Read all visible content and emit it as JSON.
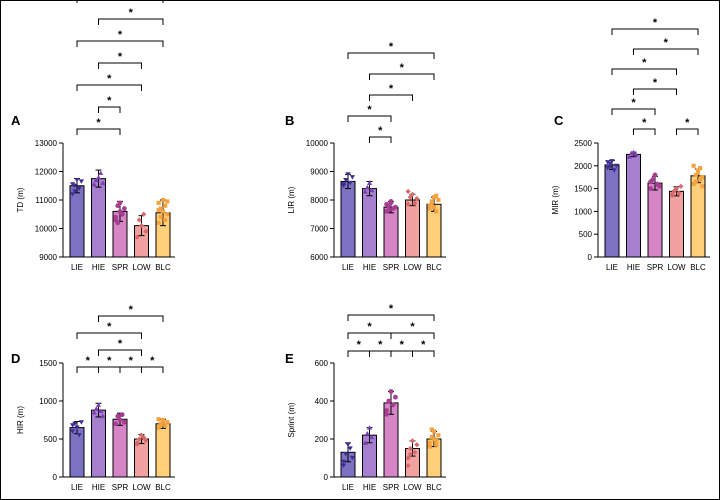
{
  "chart_data": [
    {
      "panel": "A",
      "type": "bar",
      "ylabel": "TD (m)",
      "ylim": [
        9000,
        13000
      ],
      "yticks": [
        9000,
        10000,
        11000,
        12000,
        13000
      ],
      "categories": [
        "LIE",
        "HIE",
        "SPR",
        "LOW",
        "BLC"
      ],
      "values": [
        11500,
        11750,
        10600,
        10100,
        10550
      ],
      "errors": [
        250,
        300,
        350,
        350,
        450
      ],
      "points": [
        [
          11200,
          11500,
          11700,
          11400,
          11650,
          11550,
          11300
        ],
        [
          11550,
          11700,
          11800,
          11950,
          11600
        ],
        [
          10300,
          10800,
          10900,
          10500,
          10700,
          10400,
          10200,
          10600
        ],
        [
          9700,
          10300,
          10100,
          10500,
          9900
        ],
        [
          10200,
          10700,
          11000,
          10800,
          10500,
          10900,
          10400,
          10600,
          10300,
          10950,
          10650
        ]
      ],
      "sig_marks": [
        {
          "from": "LIE",
          "to": "SPR",
          "label": "*"
        },
        {
          "from": "HIE",
          "to": "SPR",
          "label": "*"
        },
        {
          "from": "LIE",
          "to": "LOW",
          "label": "*"
        },
        {
          "from": "HIE",
          "to": "LOW",
          "label": "*"
        },
        {
          "from": "LIE",
          "to": "BLC",
          "label": "*"
        },
        {
          "from": "HIE",
          "to": "BLC",
          "label": "*"
        },
        {
          "from": "LIE",
          "to": "BLC",
          "label": "*"
        }
      ]
    },
    {
      "panel": "B",
      "type": "bar",
      "ylabel": "LIR (m)",
      "ylim": [
        6000,
        10000
      ],
      "yticks": [
        6000,
        7000,
        8000,
        9000,
        10000
      ],
      "categories": [
        "LIE",
        "HIE",
        "SPR",
        "LOW",
        "BLC"
      ],
      "values": [
        8650,
        8400,
        7750,
        8000,
        7850
      ],
      "errors": [
        250,
        250,
        200,
        200,
        250
      ],
      "points": [
        [
          8500,
          8700,
          8900,
          8600,
          8800,
          8550
        ],
        [
          8300,
          8450,
          8600,
          8350
        ],
        [
          7600,
          7800,
          7900,
          7700,
          7750,
          7850,
          7650,
          7950
        ],
        [
          7850,
          8100,
          8200,
          7900,
          8050,
          8300
        ],
        [
          7700,
          7900,
          8100,
          7600,
          8000,
          7800,
          7950,
          7750,
          8150
        ]
      ],
      "sig_marks": [
        {
          "from": "HIE",
          "to": "SPR",
          "label": "*"
        },
        {
          "from": "LIE",
          "to": "SPR",
          "label": "*"
        },
        {
          "from": "HIE",
          "to": "LOW",
          "label": "*"
        },
        {
          "from": "HIE",
          "to": "BLC",
          "label": "*"
        },
        {
          "from": "LIE",
          "to": "BLC",
          "label": "*"
        }
      ]
    },
    {
      "panel": "C",
      "type": "bar",
      "ylabel": "MIR (m)",
      "ylim": [
        0,
        2500
      ],
      "yticks": [
        0,
        500,
        1000,
        1500,
        2000,
        2500
      ],
      "categories": [
        "LIE",
        "HIE",
        "SPR",
        "LOW",
        "BLC"
      ],
      "values": [
        2020,
        2250,
        1620,
        1440,
        1780
      ],
      "errors": [
        100,
        50,
        150,
        100,
        150
      ],
      "points": [
        [
          1950,
          2050,
          2100,
          1900,
          2000,
          2080,
          1980
        ],
        [
          2200,
          2280,
          2300,
          2250
        ],
        [
          1500,
          1700,
          1800,
          1600,
          1550,
          1650
        ],
        [
          1350,
          1450,
          1500,
          1400,
          1550,
          1380
        ],
        [
          1600,
          1800,
          1900,
          1700,
          1750,
          2000,
          1650,
          1850,
          1950,
          1550
        ]
      ],
      "sig_marks": [
        {
          "from": "HIE",
          "to": "SPR",
          "label": "*"
        },
        {
          "from": "LOW",
          "to": "BLC",
          "label": "*"
        },
        {
          "from": "LIE",
          "to": "SPR",
          "label": "*"
        },
        {
          "from": "HIE",
          "to": "LOW",
          "label": "*"
        },
        {
          "from": "LIE",
          "to": "LOW",
          "label": "*"
        },
        {
          "from": "HIE",
          "to": "BLC",
          "label": "*"
        },
        {
          "from": "LIE",
          "to": "BLC",
          "label": "*"
        }
      ]
    },
    {
      "panel": "D",
      "type": "bar",
      "ylabel": "HIR (m)",
      "ylim": [
        0,
        1500
      ],
      "yticks": [
        0,
        500,
        1000,
        1500
      ],
      "categories": [
        "LIE",
        "HIE",
        "SPR",
        "LOW",
        "BLC"
      ],
      "values": [
        650,
        880,
        760,
        500,
        700
      ],
      "errors": [
        80,
        90,
        80,
        60,
        60
      ],
      "points": [
        [
          600,
          700,
          650,
          550,
          720,
          680
        ],
        [
          850,
          900,
          950,
          870,
          800
        ],
        [
          700,
          800,
          750,
          820,
          720
        ],
        [
          450,
          500,
          550,
          520,
          480,
          430
        ],
        [
          650,
          700,
          750,
          680,
          720,
          760,
          690,
          730
        ]
      ],
      "sig_marks": [
        {
          "from": "LIE",
          "to": "HIE",
          "label": "*"
        },
        {
          "from": "HIE",
          "to": "SPR",
          "label": "*"
        },
        {
          "from": "SPR",
          "to": "LOW",
          "label": "*"
        },
        {
          "from": "LOW",
          "to": "BLC",
          "label": "*"
        },
        {
          "from": "HIE",
          "to": "LOW",
          "label": "*"
        },
        {
          "from": "LIE",
          "to": "LOW",
          "label": "*"
        },
        {
          "from": "HIE",
          "to": "BLC",
          "label": "*"
        }
      ]
    },
    {
      "panel": "E",
      "type": "bar",
      "ylabel": "Sprint (m)",
      "ylim": [
        0,
        600
      ],
      "yticks": [
        0,
        200,
        400,
        600
      ],
      "categories": [
        "LIE",
        "HIE",
        "SPR",
        "LOW",
        "BLC"
      ],
      "values": [
        130,
        220,
        390,
        150,
        200
      ],
      "errors": [
        50,
        40,
        60,
        40,
        40
      ],
      "points": [
        [
          80,
          120,
          170,
          150,
          100,
          60
        ],
        [
          180,
          230,
          260,
          210
        ],
        [
          330,
          400,
          450,
          380,
          420,
          350
        ],
        [
          100,
          150,
          190,
          130,
          170,
          60,
          120
        ],
        [
          160,
          210,
          240,
          190,
          220,
          180,
          250,
          200,
          170
        ]
      ],
      "sig_marks": [
        {
          "from": "LIE",
          "to": "HIE",
          "label": "*"
        },
        {
          "from": "HIE",
          "to": "SPR",
          "label": "*"
        },
        {
          "from": "SPR",
          "to": "LOW",
          "label": "*"
        },
        {
          "from": "LOW",
          "to": "BLC",
          "label": "*"
        },
        {
          "from": "LIE",
          "to": "SPR",
          "label": "*"
        },
        {
          "from": "SPR",
          "to": "BLC",
          "label": "*"
        },
        {
          "from": "LIE",
          "to": "BLC",
          "label": "*"
        }
      ]
    }
  ],
  "group_colors": {
    "LIE": {
      "fill": "#7b72c4",
      "dot": "#3d2f92"
    },
    "HIE": {
      "fill": "#a67fcf",
      "dot": "#7a3fb0"
    },
    "SPR": {
      "fill": "#d686c6",
      "dot": "#a93c93"
    },
    "LOW": {
      "fill": "#f2a1a1",
      "dot": "#d66a6a"
    },
    "BLC": {
      "fill": "#ffcf7a",
      "dot": "#f5a340"
    }
  },
  "marker_shapes": {
    "LIE": "triangle-down",
    "HIE": "triangle-up",
    "SPR": "circle",
    "LOW": "diamond",
    "BLC": "square"
  }
}
